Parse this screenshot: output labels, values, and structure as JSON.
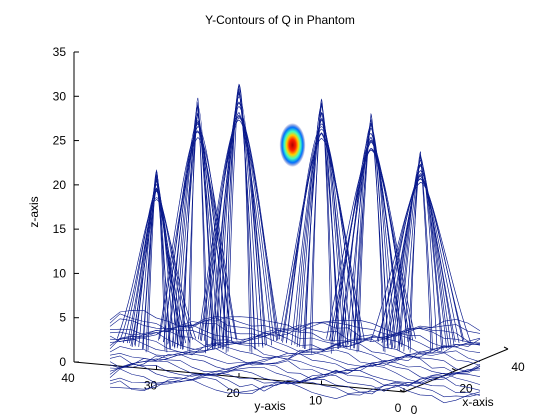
{
  "chart_data": {
    "type": "contour3d",
    "title": "Y-Contours of Q in Phantom",
    "xlabel": "x-axis",
    "ylabel": "y-axis",
    "zlabel": "z-axis",
    "zlim": [
      0,
      35
    ],
    "ylim": [
      0,
      40
    ],
    "xlim": [
      0,
      40
    ],
    "z_ticks": [
      "0",
      "5",
      "10",
      "15",
      "20",
      "25",
      "30",
      "35"
    ],
    "y_ticks": [
      "40",
      "30",
      "20",
      "10",
      "0"
    ],
    "x_ticks": [
      "0",
      "20",
      "40"
    ],
    "grid": false,
    "contour_color": "#0a1a8c",
    "hotspot": {
      "y": 14,
      "z": 24.5
    },
    "peaks": [
      {
        "y": 30,
        "z": 22
      },
      {
        "y": 25,
        "z": 30
      },
      {
        "y": 20,
        "z": 32
      },
      {
        "y": 10,
        "z": 30
      },
      {
        "y": 4,
        "z": 28
      },
      {
        "y": -2,
        "z": 24
      }
    ]
  }
}
